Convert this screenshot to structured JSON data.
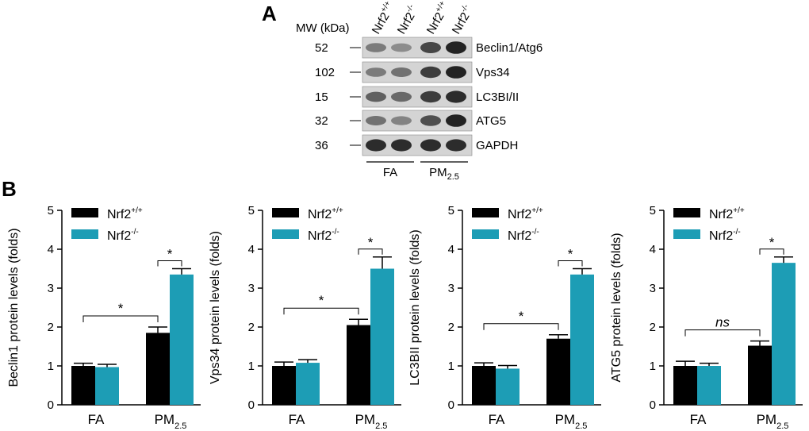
{
  "panel_labels": {
    "a": "A",
    "b": "B"
  },
  "blot": {
    "mw_header": "MW (kDa)",
    "lanes": [
      {
        "base": "Nrf2",
        "sup": "+/+"
      },
      {
        "base": "Nrf2",
        "sup": "-/-"
      },
      {
        "base": "Nrf2",
        "sup": "+/+"
      },
      {
        "base": "Nrf2",
        "sup": "-/-"
      }
    ],
    "rows": [
      {
        "mw": "52",
        "protein": "Beclin1/Atg6",
        "intensity": [
          0.45,
          0.35,
          0.75,
          0.95
        ]
      },
      {
        "mw": "102",
        "protein": "Vps34",
        "intensity": [
          0.45,
          0.5,
          0.8,
          0.95
        ]
      },
      {
        "mw": "15",
        "protein": "LC3BI/II",
        "intensity": [
          0.6,
          0.55,
          0.8,
          0.9
        ]
      },
      {
        "mw": "32",
        "protein": "ATG5",
        "intensity": [
          0.5,
          0.4,
          0.7,
          0.95
        ]
      },
      {
        "mw": "36",
        "protein": "GAPDH",
        "intensity": [
          0.9,
          0.9,
          0.9,
          0.9
        ]
      }
    ],
    "groups": [
      {
        "label": "FA",
        "sub": ""
      },
      {
        "label": "PM",
        "sub": "2.5"
      }
    ]
  },
  "legend": {
    "entries": [
      {
        "base": "Nrf2",
        "sup": "+/+",
        "color": "#000000"
      },
      {
        "base": "Nrf2",
        "sup": "-/-",
        "color": "#1d9db5"
      }
    ]
  },
  "colors": {
    "wt": "#000000",
    "ko": "#1d9db5",
    "blot_bg": "#d4d4d4"
  },
  "chart_data": [
    {
      "type": "bar",
      "ylabel": "Beclin1 protein levels (folds)",
      "categories": [
        {
          "label": "FA",
          "sub": ""
        },
        {
          "label": "PM",
          "sub": "2.5"
        }
      ],
      "ylim": [
        0,
        5
      ],
      "yticks": [
        "0",
        "1",
        "2",
        "3",
        "4",
        "5"
      ],
      "series": [
        {
          "name": "Nrf2+/+",
          "values": [
            1.0,
            1.85
          ],
          "errors": [
            0.07,
            0.15
          ]
        },
        {
          "name": "Nrf2-/-",
          "values": [
            0.97,
            3.35
          ],
          "errors": [
            0.07,
            0.15
          ]
        }
      ],
      "significance": [
        {
          "label": "*",
          "between": "FA Nrf2+/+ vs PM2.5 Nrf2+/+"
        },
        {
          "label": "*",
          "between": "PM2.5 Nrf2+/+ vs PM2.5 Nrf2-/-"
        }
      ]
    },
    {
      "type": "bar",
      "ylabel": "Vps34 protein levels (folds)",
      "categories": [
        {
          "label": "FA",
          "sub": ""
        },
        {
          "label": "PM",
          "sub": "2.5"
        }
      ],
      "ylim": [
        0,
        5
      ],
      "yticks": [
        "0",
        "1",
        "2",
        "3",
        "4",
        "5"
      ],
      "series": [
        {
          "name": "Nrf2+/+",
          "values": [
            1.0,
            2.05
          ],
          "errors": [
            0.1,
            0.15
          ]
        },
        {
          "name": "Nrf2-/-",
          "values": [
            1.08,
            3.5
          ],
          "errors": [
            0.08,
            0.3
          ]
        }
      ],
      "significance": [
        {
          "label": "*",
          "between": "FA Nrf2+/+ vs PM2.5 Nrf2+/+"
        },
        {
          "label": "*",
          "between": "PM2.5 Nrf2+/+ vs PM2.5 Nrf2-/-"
        }
      ]
    },
    {
      "type": "bar",
      "ylabel": "LC3BII protein levels (folds)",
      "categories": [
        {
          "label": "FA",
          "sub": ""
        },
        {
          "label": "PM",
          "sub": "2.5"
        }
      ],
      "ylim": [
        0,
        5
      ],
      "yticks": [
        "0",
        "1",
        "2",
        "3",
        "4",
        "5"
      ],
      "series": [
        {
          "name": "Nrf2+/+",
          "values": [
            1.0,
            1.7
          ],
          "errors": [
            0.08,
            0.1
          ]
        },
        {
          "name": "Nrf2-/-",
          "values": [
            0.93,
            3.35
          ],
          "errors": [
            0.08,
            0.15
          ]
        }
      ],
      "significance": [
        {
          "label": "*",
          "between": "FA Nrf2+/+ vs PM2.5 Nrf2+/+"
        },
        {
          "label": "*",
          "between": "PM2.5 Nrf2+/+ vs PM2.5 Nrf2-/-"
        }
      ]
    },
    {
      "type": "bar",
      "ylabel": "ATG5 protein levels (folds)",
      "categories": [
        {
          "label": "FA",
          "sub": ""
        },
        {
          "label": "PM",
          "sub": "2.5"
        }
      ],
      "ylim": [
        0,
        5
      ],
      "yticks": [
        "0",
        "1",
        "2",
        "3",
        "4",
        "5"
      ],
      "series": [
        {
          "name": "Nrf2+/+",
          "values": [
            1.0,
            1.52
          ],
          "errors": [
            0.12,
            0.12
          ]
        },
        {
          "name": "Nrf2-/-",
          "values": [
            1.0,
            3.65
          ],
          "errors": [
            0.07,
            0.15
          ]
        }
      ],
      "significance": [
        {
          "label": "ns",
          "between": "FA Nrf2+/+ vs PM2.5 Nrf2+/+"
        },
        {
          "label": "*",
          "between": "PM2.5 Nrf2+/+ vs PM2.5 Nrf2-/-"
        }
      ]
    }
  ]
}
